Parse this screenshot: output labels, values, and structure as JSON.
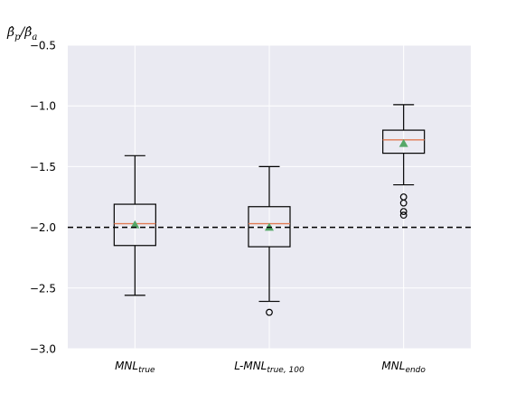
{
  "chart_data": {
    "type": "box",
    "ylabel": "β̂p/β̂a",
    "ylabel_base": "β̂",
    "ylabel_sub_num": "p",
    "ylabel_sep": "/",
    "ylabel_sub_den": "a",
    "ylim": [
      -3.0,
      -0.5
    ],
    "yticks": [
      -0.5,
      -1.0,
      -1.5,
      -2.0,
      -2.5,
      -3.0
    ],
    "ytick_labels": [
      "−0.5",
      "−1.0",
      "−1.5",
      "−2.0",
      "−2.5",
      "−3.0"
    ],
    "grid": true,
    "reference_line": -2.0,
    "colors": {
      "background": "#eaeaf2",
      "grid": "#ffffff",
      "box": "#000000",
      "median": "#e07b54",
      "mean_marker": "#55a868",
      "reference_line": "#000000"
    },
    "categories": [
      {
        "label": "MNL_true",
        "main": "MNL",
        "sub": "true"
      },
      {
        "label": "L-MNL_true,100",
        "main": "L-MNL",
        "sub": "true, 100"
      },
      {
        "label": "MNL_endo",
        "main": "MNL",
        "sub": "endo"
      }
    ],
    "boxes": [
      {
        "whislo": -2.56,
        "q1": -2.15,
        "med": -1.97,
        "q3": -1.81,
        "whishi": -1.41,
        "mean": -1.98,
        "fliers": []
      },
      {
        "whislo": -2.61,
        "q1": -2.16,
        "med": -1.97,
        "q3": -1.83,
        "whishi": -1.5,
        "mean": -2.0,
        "fliers": [
          -2.7
        ]
      },
      {
        "whislo": -1.65,
        "q1": -1.39,
        "med": -1.28,
        "q3": -1.2,
        "whishi": -0.99,
        "mean": -1.31,
        "fliers": [
          -1.75,
          -1.8,
          -1.87,
          -1.9
        ]
      }
    ]
  }
}
